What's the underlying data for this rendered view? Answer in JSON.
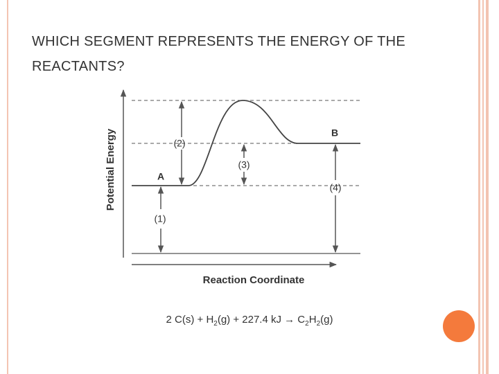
{
  "title": "WHICH SEGMENT REPRESENTS THE ENERGY OF THE REACTANTS?",
  "diagram": {
    "y_axis_label": "Potential Energy",
    "x_axis_label": "Reaction Coordinate",
    "point_a": "A",
    "point_b": "B",
    "segments": [
      "(1)",
      "(2)",
      "(3)",
      "(4)"
    ],
    "equation": [
      {
        "text": "2 C(s) + H"
      },
      {
        "text": "2",
        "sub": true
      },
      {
        "text": "(g) + 227.4 kJ → C"
      },
      {
        "text": "2",
        "sub": true
      },
      {
        "text": "H"
      },
      {
        "text": "2",
        "sub": true
      },
      {
        "text": "(g)"
      }
    ]
  }
}
